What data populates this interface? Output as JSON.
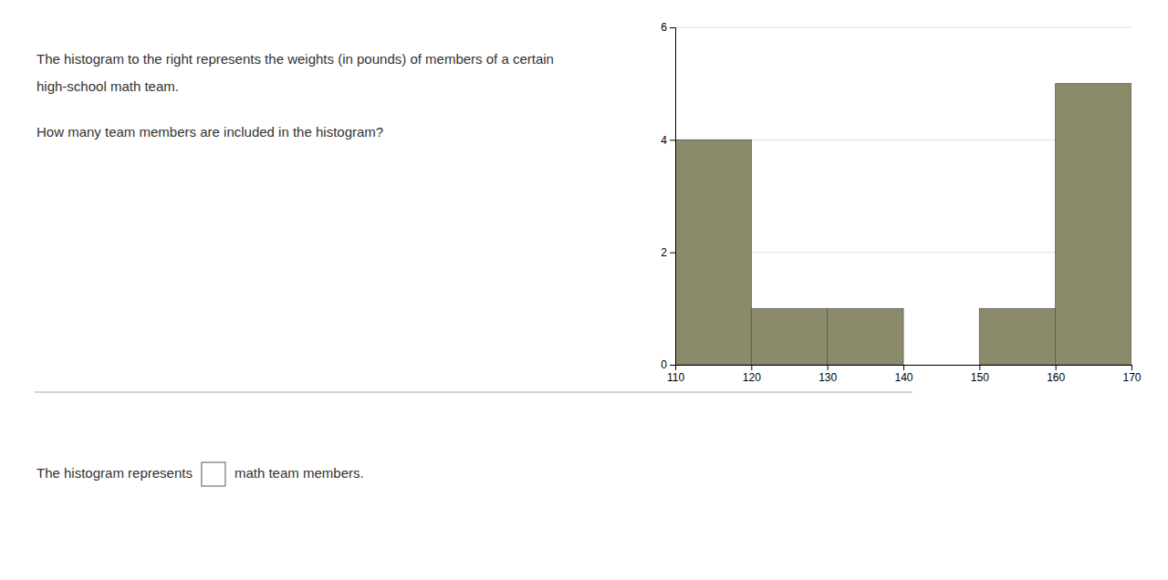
{
  "chart_data": {
    "type": "histogram",
    "annotations": [
      "The histogram to the right represents the weights (in pounds) of members of a certain",
      "high-school math team.",
      "How many team members are included in the histogram?",
      "The histogram represents",
      "math team members."
    ],
    "bins": [
      110,
      120,
      130,
      140,
      150,
      160,
      170
    ],
    "values": [
      4,
      1,
      1,
      0,
      1,
      5
    ],
    "color": "#8B8B6B",
    "xlim": [
      110,
      170
    ],
    "ylim": [
      0,
      6
    ],
    "xticks": [
      110,
      120,
      130,
      140,
      150,
      160,
      170
    ],
    "yticks": [
      0,
      2,
      4,
      6
    ],
    "grid": true
  }
}
